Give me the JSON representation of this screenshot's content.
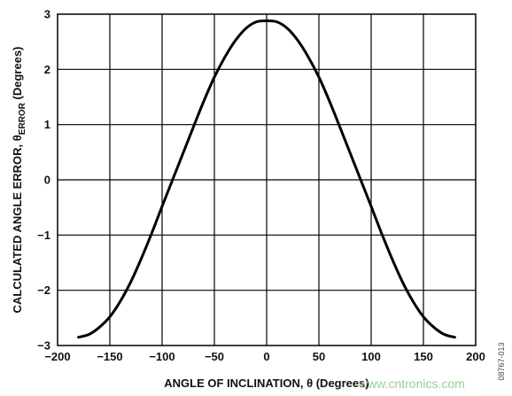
{
  "chart_data": {
    "type": "line",
    "xlabel": "ANGLE OF INCLINATION, θ (Degrees)",
    "ylabel_prefix": "CALCULATED ANGLE ERROR, θ",
    "ylabel_subscript": "ERROR",
    "ylabel_suffix": " (Degrees)",
    "xlim": [
      -200,
      200
    ],
    "ylim": [
      -3,
      3
    ],
    "x_ticks": [
      -200,
      -150,
      -100,
      -50,
      0,
      50,
      100,
      150,
      200
    ],
    "x_tick_labels": [
      "−200",
      "−150",
      "−100",
      "−50",
      "0",
      "50",
      "100",
      "150",
      "200"
    ],
    "y_ticks": [
      -3,
      -2,
      -1,
      0,
      1,
      2,
      3
    ],
    "y_tick_labels": [
      "−3",
      "−2",
      "−1",
      "0",
      "1",
      "2",
      "3"
    ],
    "grid": true,
    "series": [
      {
        "x": [
          -180,
          -170,
          -160,
          -150,
          -140,
          -130,
          -120,
          -110,
          -100,
          -90,
          -80,
          -70,
          -60,
          -50,
          -40,
          -30,
          -20,
          -10,
          0,
          10,
          20,
          30,
          40,
          50,
          60,
          70,
          80,
          90,
          100,
          110,
          120,
          130,
          140,
          150,
          160,
          170,
          180
        ],
        "y": [
          -2.85,
          -2.8,
          -2.67,
          -2.48,
          -2.2,
          -1.85,
          -1.43,
          -0.97,
          -0.48,
          0.0,
          0.48,
          0.96,
          1.43,
          1.86,
          2.22,
          2.52,
          2.74,
          2.86,
          2.88,
          2.86,
          2.74,
          2.52,
          2.22,
          1.86,
          1.43,
          0.96,
          0.48,
          0.0,
          -0.48,
          -0.97,
          -1.43,
          -1.85,
          -2.2,
          -2.48,
          -2.67,
          -2.8,
          -2.85
        ],
        "color": "#000000"
      }
    ]
  },
  "figure_id": "08767-013",
  "watermark": "www.cntronics.com"
}
